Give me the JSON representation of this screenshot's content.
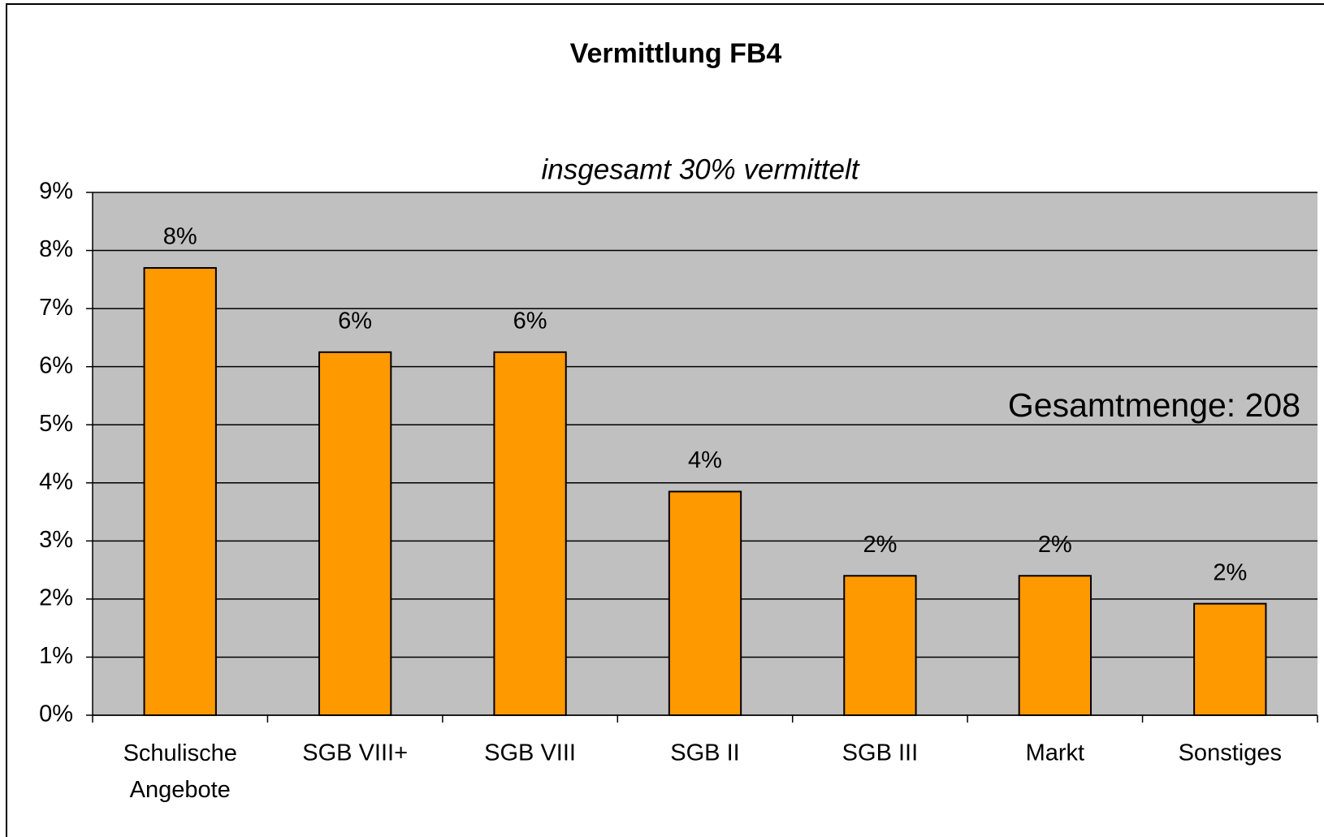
{
  "chart_data": {
    "type": "bar",
    "title": "Vermittlung FB4",
    "subtitle": "insgesamt 30% vermittelt",
    "annotation": "Gesamtmenge: 208",
    "categories": [
      "Schulische\nAngebote",
      "SGB VIII+",
      "SGB VIII",
      "SGB II",
      "SGB III",
      "Markt",
      "Sonstiges"
    ],
    "values": [
      7.7,
      6.25,
      6.25,
      3.85,
      2.4,
      2.4,
      1.92
    ],
    "value_labels": [
      "8%",
      "6%",
      "6%",
      "4%",
      "2%",
      "2%",
      "2%"
    ],
    "color": "#ff9900",
    "ylim": [
      0,
      9
    ],
    "yticks": [
      {
        "value": 0,
        "label": "0%"
      },
      {
        "value": 1,
        "label": "1%"
      },
      {
        "value": 2,
        "label": "2%"
      },
      {
        "value": 3,
        "label": "3%"
      },
      {
        "value": 4,
        "label": "4%"
      },
      {
        "value": 5,
        "label": "5%"
      },
      {
        "value": 6,
        "label": "6%"
      },
      {
        "value": 7,
        "label": "7%"
      },
      {
        "value": 8,
        "label": "8%"
      },
      {
        "value": 9,
        "label": "9%"
      }
    ],
    "grid": true
  }
}
